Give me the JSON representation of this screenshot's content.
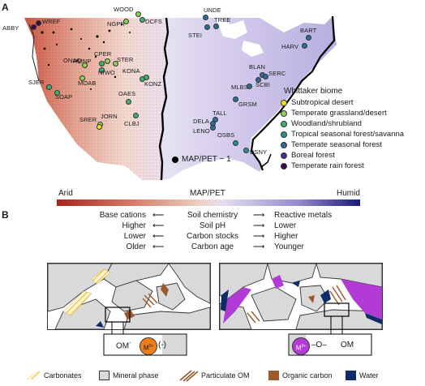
{
  "panel_a": {
    "letter": "A",
    "ratio_label": "MAP/PET ~ 1",
    "legend": {
      "title": "Whittaker biome",
      "items": [
        {
          "label": "Subtropical desert",
          "color": "#f2e21f"
        },
        {
          "label": "Temperate grassland/desert",
          "color": "#8fd255"
        },
        {
          "label": "Woodland/shrubland",
          "color": "#3db26c"
        },
        {
          "label": "Tropical seasonal forest/savanna",
          "color": "#1f938c"
        },
        {
          "label": "Temperate seasonal forest",
          "color": "#2d6f97"
        },
        {
          "label": "Boreal forest",
          "color": "#44318a"
        },
        {
          "label": "Temperate rain forest",
          "color": "#3b0b4f"
        }
      ]
    },
    "sites": [
      {
        "code": "WOOD",
        "biome": "Temperate grassland/desert"
      },
      {
        "code": "NGPR",
        "biome": "Temperate grassland/desert"
      },
      {
        "code": "DCFS",
        "biome": "Woodland/shrubland"
      },
      {
        "code": "UNDE",
        "biome": "Temperate seasonal forest"
      },
      {
        "code": "TREE",
        "biome": "Temperate seasonal forest"
      },
      {
        "code": "STEI",
        "biome": "Temperate seasonal forest"
      },
      {
        "code": "BART",
        "biome": "Temperate seasonal forest"
      },
      {
        "code": "HARV",
        "biome": "Temperate seasonal forest"
      },
      {
        "code": "ABBY",
        "biome": "Temperate rain forest"
      },
      {
        "code": "WREF",
        "biome": "Temperate rain forest"
      },
      {
        "code": "CPER",
        "biome": "Temperate grassland/desert"
      },
      {
        "code": "RMNP",
        "biome": "Woodland/shrubland"
      },
      {
        "code": "STER",
        "biome": "Temperate grassland/desert"
      },
      {
        "code": "ONAQ",
        "biome": "Temperate grassland/desert"
      },
      {
        "code": "NIWO",
        "biome": "Woodland/shrubland"
      },
      {
        "code": "MOAB",
        "biome": "Temperate grassland/desert"
      },
      {
        "code": "KONA",
        "biome": "Woodland/shrubland"
      },
      {
        "code": "KONZ",
        "biome": "Woodland/shrubland"
      },
      {
        "code": "SJER",
        "biome": "Woodland/shrubland"
      },
      {
        "code": "SOAP",
        "biome": "Woodland/shrubland"
      },
      {
        "code": "OAES",
        "biome": "Woodland/shrubland"
      },
      {
        "code": "JORN",
        "biome": "Temperate grassland/desert"
      },
      {
        "code": "SRER",
        "biome": "Subtropical desert"
      },
      {
        "code": "CLBJ",
        "biome": "Woodland/shrubland"
      },
      {
        "code": "BLAN",
        "biome": "Temperate seasonal forest"
      },
      {
        "code": "SERC",
        "biome": "Temperate seasonal forest"
      },
      {
        "code": "SCBI",
        "biome": "Temperate seasonal forest"
      },
      {
        "code": "MLBS",
        "biome": "Temperate seasonal forest"
      },
      {
        "code": "GRSM",
        "biome": "Temperate seasonal forest"
      },
      {
        "code": "TALL",
        "biome": "Temperate seasonal forest"
      },
      {
        "code": "DELA",
        "biome": "Temperate seasonal forest"
      },
      {
        "code": "LENO",
        "biome": "Temperate seasonal forest"
      },
      {
        "code": "OSBS",
        "biome": "Tropical seasonal forest/savanna"
      },
      {
        "code": "DSNY",
        "biome": "Tropical seasonal forest/savanna"
      }
    ],
    "gradient": {
      "left": "Arid",
      "center": "MAP/PET",
      "right": "Humid",
      "arid_color": "#a8231a",
      "humid_color": "#1a1a7a"
    }
  },
  "panel_b": {
    "letter": "B",
    "rows": [
      {
        "left": "Base cations",
        "center": "Soil chemistry",
        "right": "Reactive metals"
      },
      {
        "left": "Higher",
        "center": "Soil pH",
        "right": "Lower"
      },
      {
        "left": "Lower",
        "center": "Carbon stocks",
        "right": "Higher"
      },
      {
        "left": "Older",
        "center": "Carbon age",
        "right": "Younger"
      }
    ],
    "left_callout": {
      "om": "OM",
      "om_sup": "-",
      "metal": "M",
      "metal_sup": "2+",
      "charge": "(-)"
    },
    "right_callout": {
      "metal": "M",
      "metal_sup": "3+",
      "bond": "–O–",
      "om": "OM"
    },
    "legend": [
      {
        "label": "Carbonates",
        "icon": "carbonate-hatch"
      },
      {
        "label": "Mineral phase",
        "icon": "mineral-square"
      },
      {
        "label": "Particulate OM",
        "icon": "particulate-om"
      },
      {
        "label": "Organic carbon",
        "icon": "organic-carbon-square"
      },
      {
        "label": "Water",
        "icon": "water-square"
      }
    ],
    "colors": {
      "mineral": "#d9d9d9",
      "organic": "#9c5a2c",
      "water": "#0f2c66",
      "metal_left": "#f07d1a",
      "metal_right": "#b23bd6",
      "carbonate": "#f3d36a"
    }
  }
}
